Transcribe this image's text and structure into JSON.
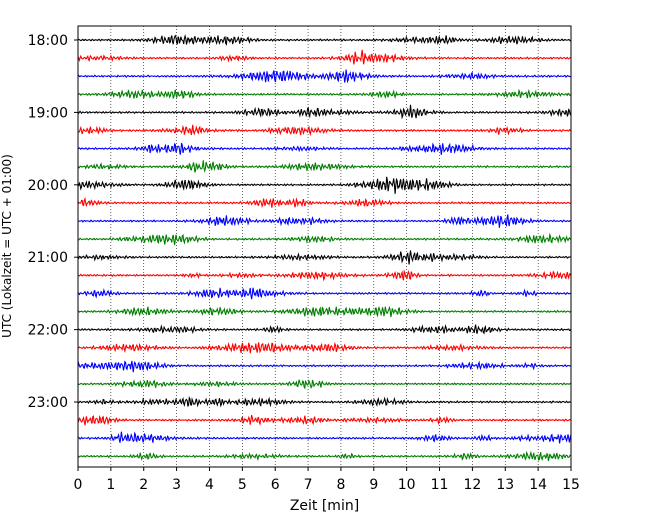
{
  "chart_data": {
    "type": "line",
    "title": "",
    "xlabel": "Zeit  [min]",
    "ylabel": "UTC (Lokalzeit = UTC + 01:00)",
    "xlim": [
      0,
      15
    ],
    "x_ticks": [
      "0",
      "1",
      "2",
      "3",
      "4",
      "5",
      "6",
      "7",
      "8",
      "9",
      "10",
      "11",
      "12",
      "13",
      "14",
      "15"
    ],
    "y_tick_labels": [
      "18:00",
      "19:00",
      "20:00",
      "21:00",
      "22:00",
      "23:00"
    ],
    "trace_start_times": [
      "18:00",
      "18:15",
      "18:30",
      "18:45",
      "19:00",
      "19:15",
      "19:30",
      "19:45",
      "20:00",
      "20:15",
      "20:30",
      "20:45",
      "21:00",
      "21:15",
      "21:30",
      "21:45",
      "22:00",
      "22:15",
      "22:30",
      "22:45",
      "23:00",
      "23:15",
      "23:30",
      "23:45"
    ],
    "trace_color_cycle": [
      "#000000",
      "#ff0000",
      "#0000ff",
      "#007f00"
    ],
    "grid": {
      "vertical": true,
      "style": "dotted"
    },
    "legend": "none"
  }
}
